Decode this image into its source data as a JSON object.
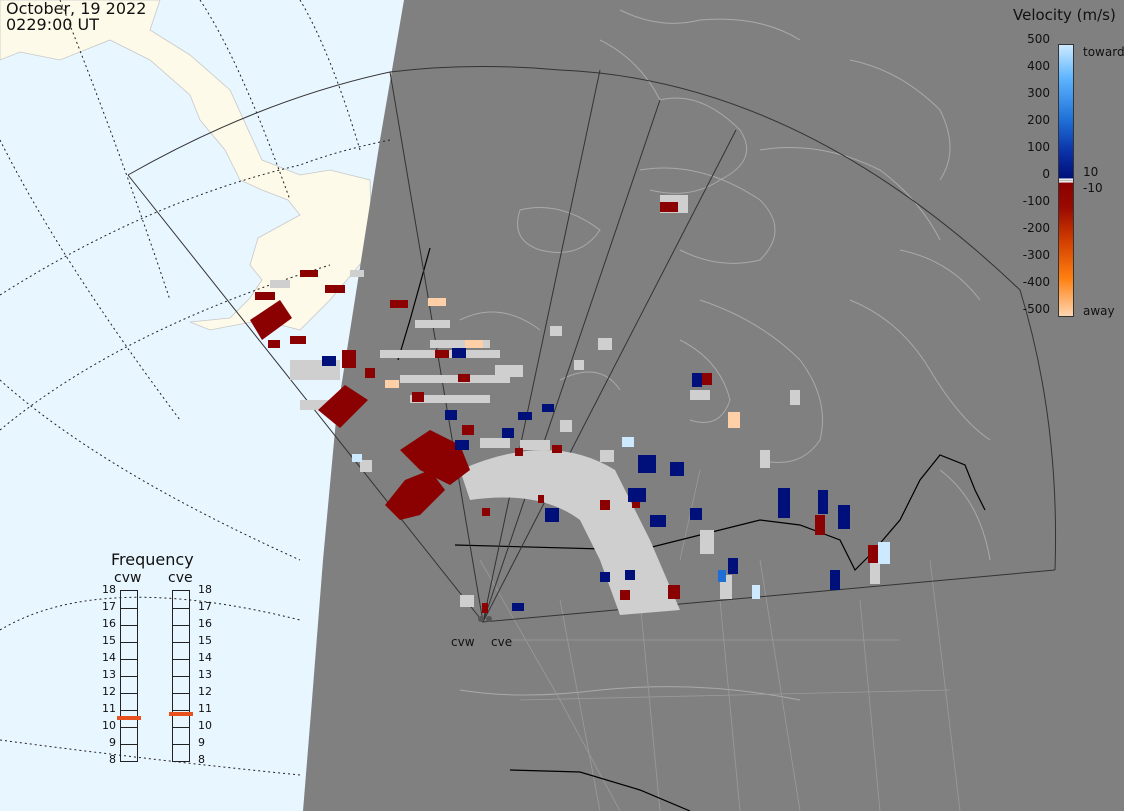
{
  "header": {
    "date": "October, 19 2022",
    "time": "0229:00 UT"
  },
  "colors": {
    "ocean": "#e8f6ff",
    "land_day": "#fdfaea",
    "night": "#808080",
    "ground_scatter": "#cfcfcf",
    "coast": "#a9a9a9",
    "border": "#000000"
  },
  "velocity_legend": {
    "title": "Velocity (m/s)",
    "ticks": [
      "500",
      "400",
      "300",
      "200",
      "100",
      "0",
      "-100",
      "-200",
      "-300",
      "-400",
      "-500"
    ],
    "small_labels": [
      "10",
      "-10"
    ],
    "toward_label": "toward",
    "away_label": "away"
  },
  "frequency_panel": {
    "title": "Frequency",
    "radars": [
      {
        "name": "cvw",
        "freq_mhz": 10.5
      },
      {
        "name": "cve",
        "freq_mhz": 10.7
      }
    ],
    "scale": [
      "18",
      "17",
      "16",
      "15",
      "14",
      "13",
      "12",
      "11",
      "10",
      "9",
      "8"
    ]
  },
  "sites": [
    {
      "label": "cvw"
    },
    {
      "label": "cve"
    }
  ]
}
